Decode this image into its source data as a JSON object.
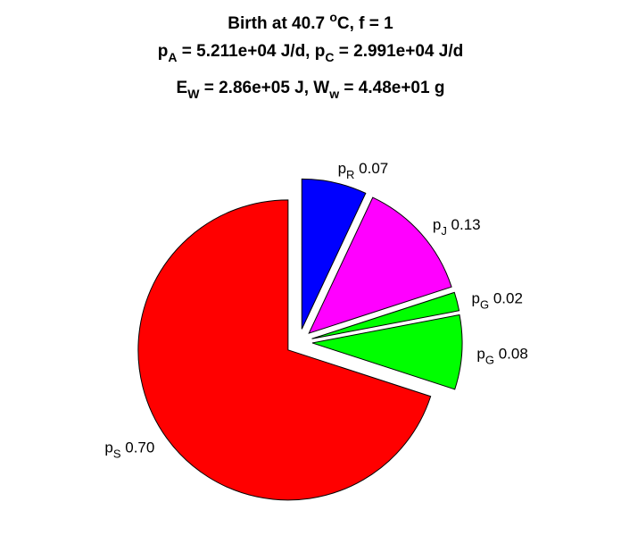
{
  "title": {
    "line1": {
      "text": "Birth at 40.7 ",
      "sup": "o",
      "tail": "C, f = 1"
    },
    "line2": {
      "a_base": "p",
      "a_sub": "A",
      "a_val": " = 5.211e+04 J/d, ",
      "c_base": "p",
      "c_sub": "C",
      "c_val": " = 2.991e+04 J/d"
    },
    "line3": {
      "e_base": "E",
      "e_sub": "W",
      "e_val": " = 2.86e+05 J, ",
      "w_base": "W",
      "w_sub": "w",
      "w_val": " = 4.48e+01 g"
    }
  },
  "chart_data": {
    "type": "pie",
    "start_angle_deg": 90,
    "direction": "clockwise",
    "exploded": true,
    "slices": [
      {
        "base": "p",
        "sub": "R",
        "value": 0.07,
        "label": "0.07",
        "color": "#0000ff"
      },
      {
        "base": "p",
        "sub": "J",
        "value": 0.13,
        "label": "0.13",
        "color": "#ff00ff"
      },
      {
        "base": "p",
        "sub": "G",
        "value": 0.02,
        "label": "0.02",
        "color": "#00ff00"
      },
      {
        "base": "p",
        "sub": "G",
        "value": 0.08,
        "label": "0.08",
        "color": "#00ff00"
      },
      {
        "base": "p",
        "sub": "S",
        "value": 0.7,
        "label": "0.70",
        "color": "#ff0000"
      }
    ]
  }
}
